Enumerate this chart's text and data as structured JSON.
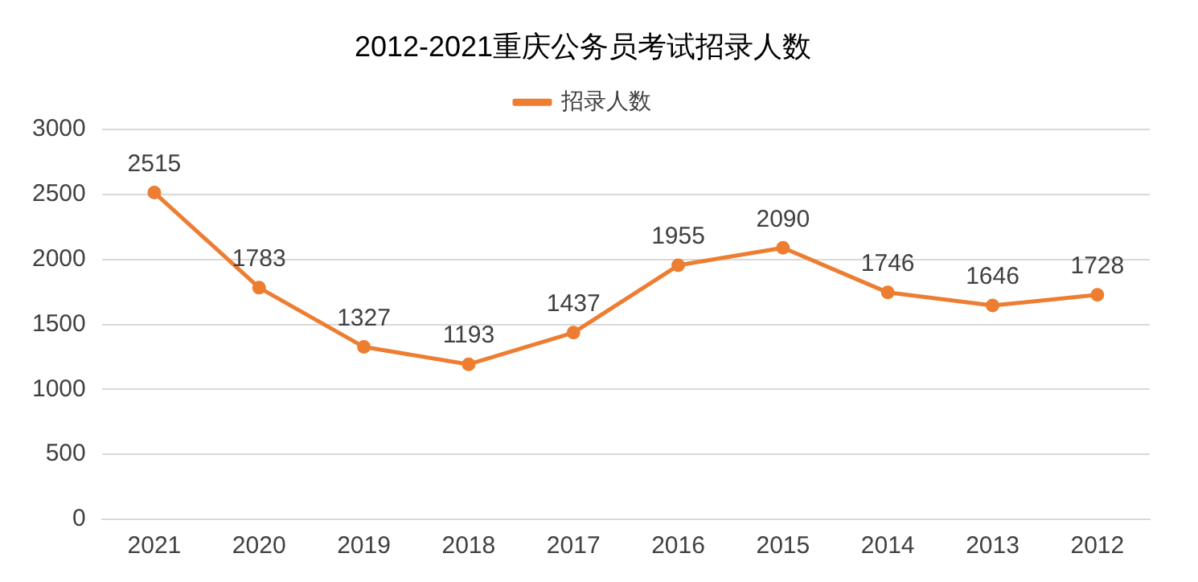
{
  "chart_data": {
    "type": "line",
    "title": "2012-2021重庆公务员考试招录人数",
    "categories": [
      "2021",
      "2020",
      "2019",
      "2018",
      "2017",
      "2016",
      "2015",
      "2014",
      "2013",
      "2012"
    ],
    "series": [
      {
        "name": "招录人数",
        "color": "#ed7d31",
        "values": [
          2515,
          1783,
          1327,
          1193,
          1437,
          1955,
          2090,
          1746,
          1646,
          1728
        ]
      }
    ],
    "ylim": [
      0,
      3000
    ],
    "yticks": [
      0,
      500,
      1000,
      1500,
      2000,
      2500,
      3000
    ],
    "grid": "y",
    "legend": "top",
    "marker": "circle",
    "line_style": "solid",
    "data_labels": true
  }
}
